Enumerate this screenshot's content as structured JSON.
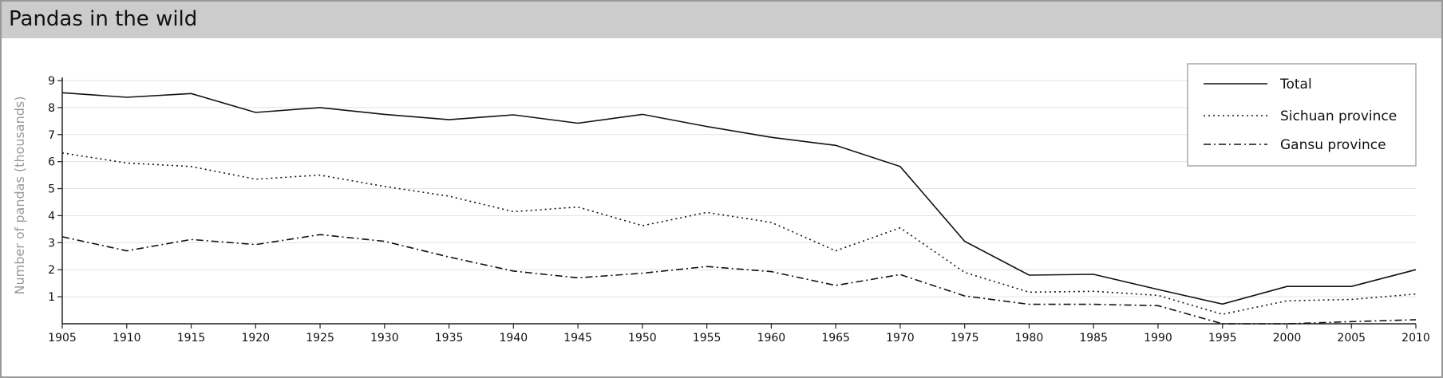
{
  "chart_data": {
    "type": "line",
    "title": "Pandas in the wild",
    "xlabel": "",
    "ylabel": "Number of pandas (thousands)",
    "x": [
      1905,
      1910,
      1915,
      1920,
      1925,
      1930,
      1935,
      1940,
      1945,
      1950,
      1955,
      1960,
      1965,
      1970,
      1975,
      1980,
      1985,
      1990,
      1995,
      2000,
      2005,
      2010
    ],
    "xlim": [
      1905,
      2010
    ],
    "ylim": [
      0,
      9
    ],
    "xticks": [
      "1905",
      "1910",
      "1915",
      "1920",
      "1925",
      "1930",
      "1935",
      "1940",
      "1945",
      "1950",
      "1955",
      "1960",
      "1965",
      "1970",
      "1975",
      "1980",
      "1985",
      "1990",
      "1995",
      "2000",
      "2005",
      "2010"
    ],
    "yticks": [
      "1",
      "2",
      "3",
      "4",
      "5",
      "6",
      "7",
      "8",
      "9"
    ],
    "grid": true,
    "legend_position": "top-right",
    "series": [
      {
        "name": "Total",
        "style": "solid",
        "values": [
          8.55,
          8.38,
          8.52,
          7.82,
          8.0,
          7.75,
          7.55,
          7.73,
          7.42,
          7.75,
          7.3,
          6.9,
          6.6,
          5.82,
          3.05,
          1.8,
          1.83,
          1.27,
          0.73,
          1.38,
          1.38,
          2.0
        ]
      },
      {
        "name": "Sichuan province",
        "style": "dotted",
        "values": [
          6.32,
          5.95,
          5.82,
          5.35,
          5.5,
          5.08,
          4.72,
          4.15,
          4.32,
          3.63,
          4.12,
          3.75,
          2.7,
          3.55,
          1.9,
          1.17,
          1.2,
          1.05,
          0.35,
          0.85,
          0.9,
          1.1
        ]
      },
      {
        "name": "Gansu province",
        "style": "dashdot",
        "values": [
          3.22,
          2.7,
          3.12,
          2.93,
          3.3,
          3.05,
          2.47,
          1.95,
          1.7,
          1.87,
          2.12,
          1.93,
          1.42,
          1.82,
          1.03,
          0.72,
          0.72,
          0.67,
          0.0,
          0.0,
          0.08,
          0.15
        ]
      }
    ]
  }
}
